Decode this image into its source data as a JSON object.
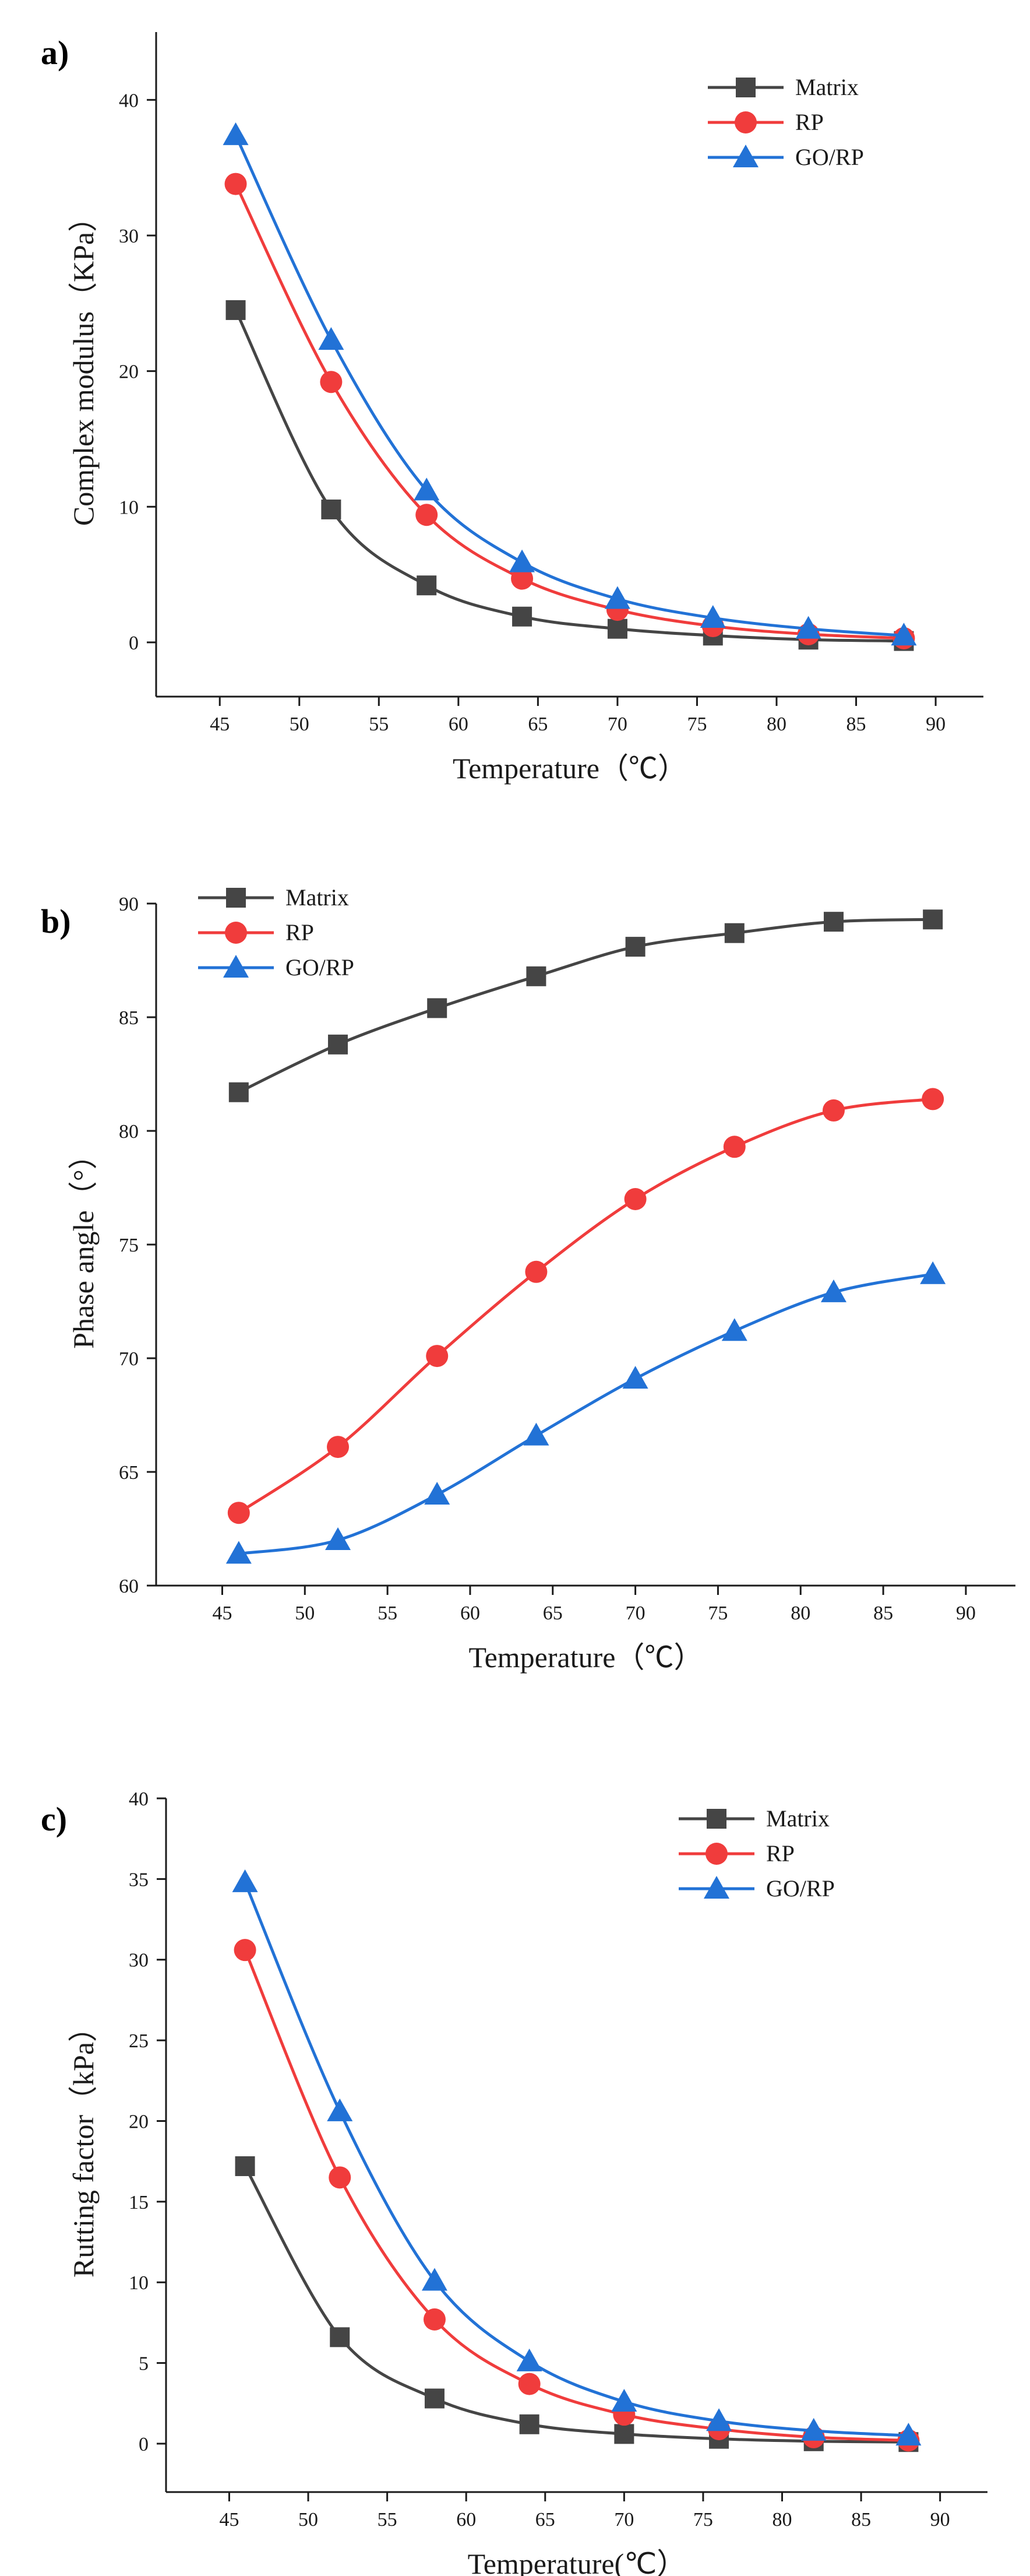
{
  "chart_data": [
    {
      "type": "line",
      "panel_label": "a)",
      "title": "",
      "xlabel": "Temperature（℃）",
      "ylabel": "Complex modulus（KPa）",
      "x": [
        46,
        52,
        58,
        64,
        70,
        76,
        82,
        88
      ],
      "xlim": [
        41,
        93
      ],
      "ylim": [
        -4,
        45
      ],
      "xticks": [
        45,
        50,
        55,
        60,
        65,
        70,
        75,
        80,
        85,
        90
      ],
      "yticks": [
        0,
        10,
        20,
        30,
        40
      ],
      "legend_position": "top-right",
      "series": [
        {
          "name": "Matrix",
          "color": "#454545",
          "marker": "square",
          "values": [
            24.5,
            9.8,
            4.2,
            1.9,
            1.0,
            0.5,
            0.2,
            0.1
          ]
        },
        {
          "name": "RP",
          "color": "#f03c3c",
          "marker": "circle",
          "values": [
            33.8,
            19.2,
            9.4,
            4.7,
            2.4,
            1.2,
            0.6,
            0.3
          ]
        },
        {
          "name": "GO/RP",
          "color": "#2272d6",
          "marker": "triangle",
          "values": [
            37.4,
            22.3,
            11.2,
            5.9,
            3.2,
            1.8,
            1.0,
            0.5
          ]
        }
      ]
    },
    {
      "type": "line",
      "panel_label": "b)",
      "title": "",
      "xlabel": "Temperature（℃）",
      "ylabel": "Phase angle（°）",
      "x": [
        46,
        52,
        58,
        64,
        70,
        76,
        82,
        88
      ],
      "xlim": [
        41,
        93
      ],
      "ylim": [
        60,
        90
      ],
      "xticks": [
        45,
        50,
        55,
        60,
        65,
        70,
        75,
        80,
        85,
        90
      ],
      "yticks": [
        60,
        65,
        70,
        75,
        80,
        85,
        90
      ],
      "legend_position": "top-left",
      "series": [
        {
          "name": "Matrix",
          "color": "#454545",
          "marker": "square",
          "values": [
            81.7,
            83.8,
            85.4,
            86.8,
            88.1,
            88.7,
            89.2,
            89.3
          ]
        },
        {
          "name": "RP",
          "color": "#f03c3c",
          "marker": "circle",
          "values": [
            63.2,
            66.1,
            70.1,
            73.8,
            77.0,
            79.3,
            80.9,
            81.4
          ]
        },
        {
          "name": "GO/RP",
          "color": "#2272d6",
          "marker": "triangle",
          "values": [
            61.4,
            62.0,
            64.0,
            66.6,
            69.1,
            71.2,
            72.9,
            73.7
          ]
        }
      ]
    },
    {
      "type": "line",
      "panel_label": "c)",
      "title": "",
      "xlabel": "Temperature(℃）",
      "ylabel": "Rutting factor（kPa）",
      "x": [
        46,
        52,
        58,
        64,
        70,
        76,
        82,
        88
      ],
      "xlim": [
        41,
        93
      ],
      "ylim": [
        -3,
        40
      ],
      "xticks": [
        45,
        50,
        55,
        60,
        65,
        70,
        75,
        80,
        85,
        90
      ],
      "yticks": [
        0,
        5,
        10,
        15,
        20,
        25,
        30,
        35,
        40
      ],
      "legend_position": "top-right",
      "series": [
        {
          "name": "Matrix",
          "color": "#454545",
          "marker": "square",
          "values": [
            17.2,
            6.6,
            2.8,
            1.2,
            0.6,
            0.3,
            0.15,
            0.1
          ]
        },
        {
          "name": "RP",
          "color": "#f03c3c",
          "marker": "circle",
          "values": [
            30.6,
            16.5,
            7.7,
            3.7,
            1.8,
            0.9,
            0.4,
            0.2
          ]
        },
        {
          "name": "GO/RP",
          "color": "#2272d6",
          "marker": "triangle",
          "values": [
            34.8,
            20.6,
            10.1,
            5.1,
            2.6,
            1.4,
            0.8,
            0.5
          ]
        }
      ]
    }
  ]
}
